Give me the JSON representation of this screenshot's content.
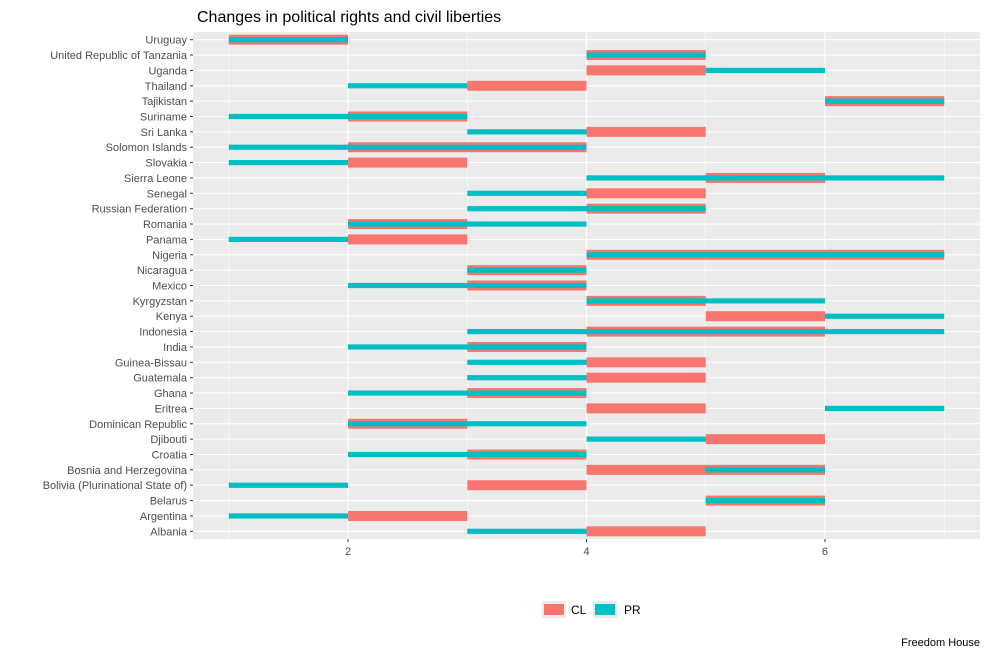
{
  "chart_data": {
    "type": "bar",
    "title": "Changes in political rights and civil liberties",
    "caption": "Freedom House",
    "xlim": [
      0.7,
      7.3
    ],
    "x_ticks": [
      2,
      4,
      6
    ],
    "x_tick_labels": [
      "2",
      "4",
      "6"
    ],
    "grid": true,
    "legend_position": "bottom",
    "colors": {
      "CL": "#F8766D",
      "PR": "#00BFC4",
      "panel": "#EBEBEB",
      "grid": "#FFFFFF"
    },
    "legend": [
      {
        "key": "CL",
        "label": "CL"
      },
      {
        "key": "PR",
        "label": "PR"
      }
    ],
    "categories": [
      "Uruguay",
      "United Republic of Tanzania",
      "Uganda",
      "Thailand",
      "Tajikistan",
      "Suriname",
      "Sri Lanka",
      "Solomon Islands",
      "Slovakia",
      "Sierra Leone",
      "Senegal",
      "Russian Federation",
      "Romania",
      "Panama",
      "Nigeria",
      "Nicaragua",
      "Mexico",
      "Kyrgyzstan",
      "Kenya",
      "Indonesia",
      "India",
      "Guinea-Bissau",
      "Guatemala",
      "Ghana",
      "Eritrea",
      "Dominican Republic",
      "Djibouti",
      "Croatia",
      "Bosnia and Herzegovina",
      "Bolivia (Plurinational State of)",
      "Belarus",
      "Argentina",
      "Albania"
    ],
    "series": [
      {
        "name": "CL",
        "ranges": [
          [
            1,
            2
          ],
          [
            4,
            5
          ],
          [
            4,
            5
          ],
          [
            3,
            4
          ],
          [
            6,
            7
          ],
          [
            2,
            3
          ],
          [
            4,
            5
          ],
          [
            2,
            4
          ],
          [
            2,
            3
          ],
          [
            5,
            6
          ],
          [
            4,
            5
          ],
          [
            4,
            5
          ],
          [
            2,
            3
          ],
          [
            2,
            3
          ],
          [
            4,
            7
          ],
          [
            3,
            4
          ],
          [
            3,
            4
          ],
          [
            4,
            5
          ],
          [
            5,
            6
          ],
          [
            4,
            6
          ],
          [
            3,
            4
          ],
          [
            4,
            5
          ],
          [
            4,
            5
          ],
          [
            3,
            4
          ],
          [
            4,
            5
          ],
          [
            2,
            3
          ],
          [
            5,
            6
          ],
          [
            3,
            4
          ],
          [
            4,
            6
          ],
          [
            3,
            4
          ],
          [
            5,
            6
          ],
          [
            2,
            3
          ],
          [
            4,
            5
          ]
        ]
      },
      {
        "name": "PR",
        "ranges": [
          [
            1,
            2
          ],
          [
            4,
            5
          ],
          [
            5,
            6
          ],
          [
            2,
            3
          ],
          [
            6,
            7
          ],
          [
            1,
            3
          ],
          [
            3,
            4
          ],
          [
            1,
            4
          ],
          [
            1,
            2
          ],
          [
            4,
            7
          ],
          [
            3,
            4
          ],
          [
            3,
            5
          ],
          [
            2,
            4
          ],
          [
            1,
            2
          ],
          [
            4,
            7
          ],
          [
            3,
            4
          ],
          [
            2,
            4
          ],
          [
            4,
            6
          ],
          [
            6,
            7
          ],
          [
            3,
            7
          ],
          [
            2,
            4
          ],
          [
            3,
            4
          ],
          [
            3,
            4
          ],
          [
            2,
            4
          ],
          [
            6,
            7
          ],
          [
            2,
            4
          ],
          [
            4,
            5
          ],
          [
            2,
            4
          ],
          [
            5,
            6
          ],
          [
            1,
            2
          ],
          [
            5,
            6
          ],
          [
            1,
            2
          ],
          [
            3,
            4
          ]
        ]
      }
    ]
  }
}
